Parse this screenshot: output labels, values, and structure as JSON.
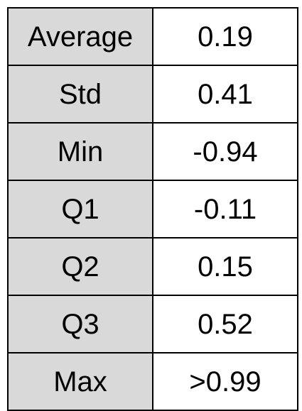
{
  "colors": {
    "label_background": "#d9d9d9",
    "value_background": "#ffffff",
    "border": "#000000",
    "text": "#000000"
  },
  "chart_data": {
    "type": "table",
    "title": "",
    "columns": [],
    "rows": [
      {
        "label": "Average",
        "value": "0.19"
      },
      {
        "label": "Std",
        "value": "0.41"
      },
      {
        "label": "Min",
        "value": "-0.94"
      },
      {
        "label": "Q1",
        "value": "-0.11"
      },
      {
        "label": "Q2",
        "value": "0.15"
      },
      {
        "label": "Q3",
        "value": "0.52"
      },
      {
        "label": "Max",
        "value": ">0.99"
      }
    ]
  }
}
